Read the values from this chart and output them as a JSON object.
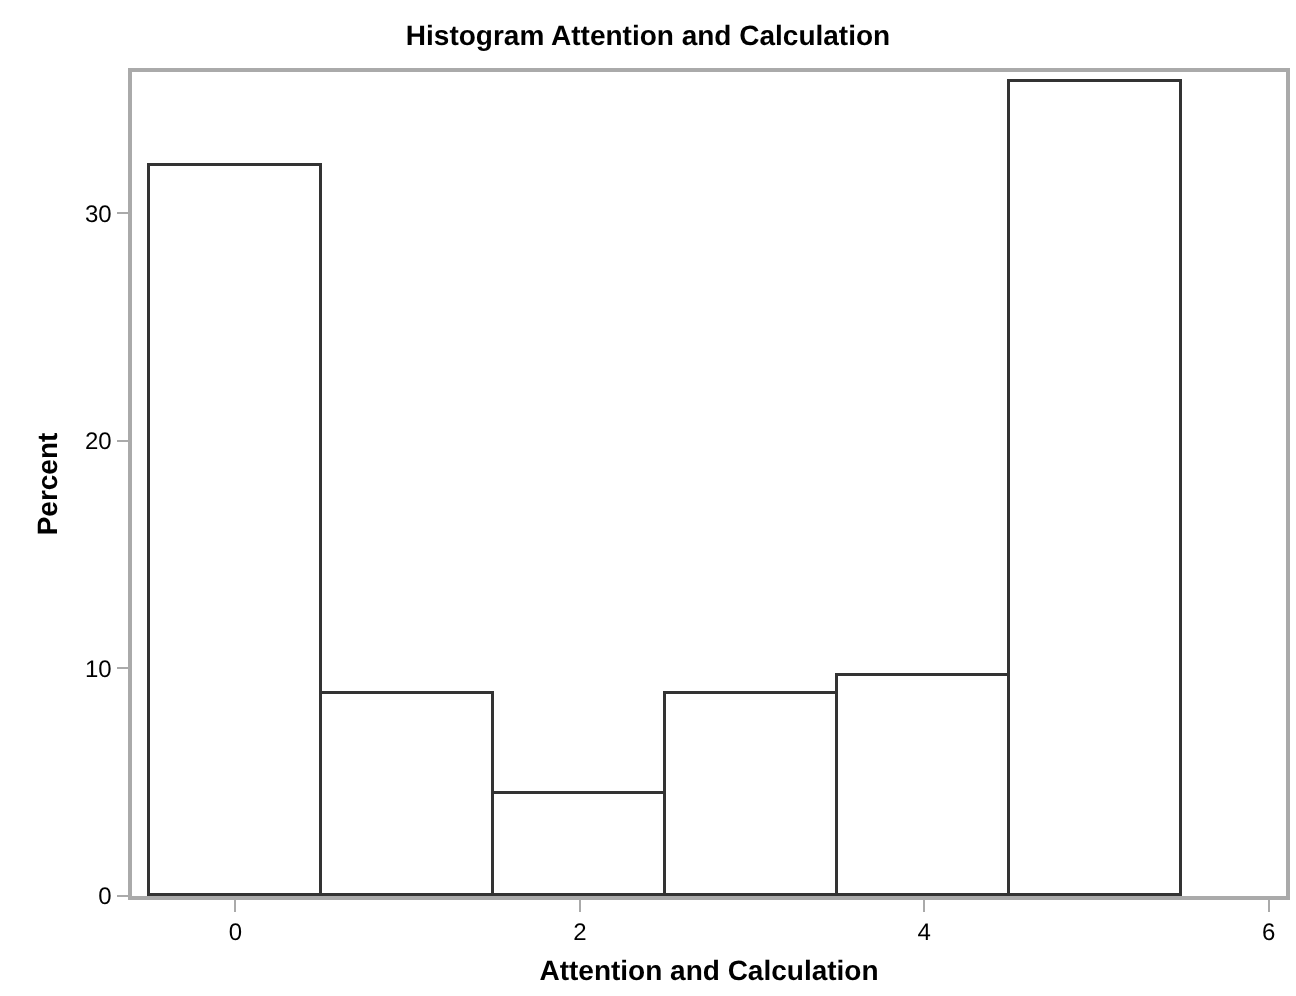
{
  "chart_data": {
    "type": "histogram",
    "title": "Histogram Attention and Calculation",
    "xlabel": "Attention and Calculation",
    "ylabel": "Percent",
    "bins": [
      -0.5,
      0.5,
      1.5,
      2.5,
      3.5,
      4.5,
      5.5
    ],
    "values": [
      32.1,
      8.9,
      4.5,
      8.9,
      9.7,
      35.8
    ],
    "color": "#ffffff",
    "xlim": [
      -0.6,
      6.1
    ],
    "xticks": [
      0,
      2,
      4,
      6
    ],
    "ylim": [
      0,
      36.2
    ],
    "yticks": [
      0,
      10,
      20,
      30
    ]
  }
}
